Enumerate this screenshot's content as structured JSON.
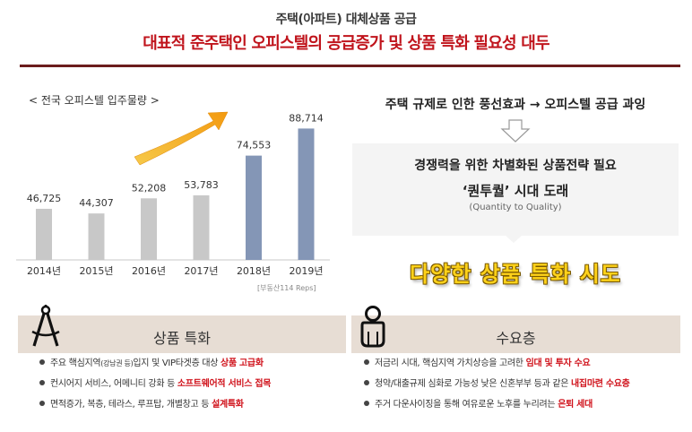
{
  "header": {
    "subtitle": "주택(아파트) 대체상품 공급",
    "title": "대표적 준주택인 오피스텔의 공급증가 및 상품 특화 필요성 대두"
  },
  "chart_data": {
    "type": "bar",
    "title": "< 전국 오피스텔 입주물량 >",
    "categories": [
      "2014년",
      "2015년",
      "2016년",
      "2017년",
      "2018년",
      "2019년"
    ],
    "values": [
      46725,
      44307,
      52208,
      53783,
      74553,
      88714
    ],
    "value_labels": [
      "46,725",
      "44,307",
      "52,208",
      "53,783",
      "74,553",
      "88,714"
    ],
    "highlight": [
      false,
      false,
      false,
      false,
      true,
      true
    ],
    "colors": {
      "normal": "#c8c8c8",
      "highlight": "#8496b6"
    },
    "ylim": [
      20000,
      95000
    ],
    "source": "[부동산114 Reps]",
    "annotation": "upward-trend-arrow"
  },
  "right_panel": {
    "line1": "주택 규제로 인한 풍선효과 → 오피스텔 공급 과잉",
    "arrow_icon": "down-arrow-icon",
    "line2": "경쟁력을 위한 차별화된 상품전략 필요",
    "line3": "‘퀀투퀄’ 시대 도래",
    "line4": "(Quantity to Quality)",
    "highlight": "다양한 상품 특화 시도"
  },
  "panels": {
    "left": {
      "icon": "compass-icon",
      "heading": "상품 특화",
      "items": [
        {
          "pre": "주요 핵심지역",
          "small": "(강남권 등)",
          "mid": "입지 및 VIP타겟층 대상 ",
          "hl": "상품 고급화",
          "post": ""
        },
        {
          "pre": "컨시어지 서비스, 어메니티 강화 등 ",
          "small": "",
          "mid": "",
          "hl": "소프트웨어적 서비스 접목",
          "post": ""
        },
        {
          "pre": "면적증가, 복층, 테라스, 루프탑, 개별창고 등 ",
          "small": "",
          "mid": "",
          "hl": "설계특화",
          "post": ""
        }
      ]
    },
    "right": {
      "icon": "person-icon",
      "heading": "수요층",
      "items": [
        {
          "pre": "저금리 시대, 핵심지역 가치상승을 고려한 ",
          "hl": "임대 및 투자 수요",
          "post": ""
        },
        {
          "pre": "청약/대출규제 심화로 가능성 낮은 신혼부부 등과 같은 ",
          "hl": "내집마련 수요층",
          "post": ""
        },
        {
          "pre": "주거 다운사이징을 통해 여유로운 노후를 누리려는 ",
          "hl": "은퇴 세대",
          "post": ""
        }
      ]
    }
  }
}
